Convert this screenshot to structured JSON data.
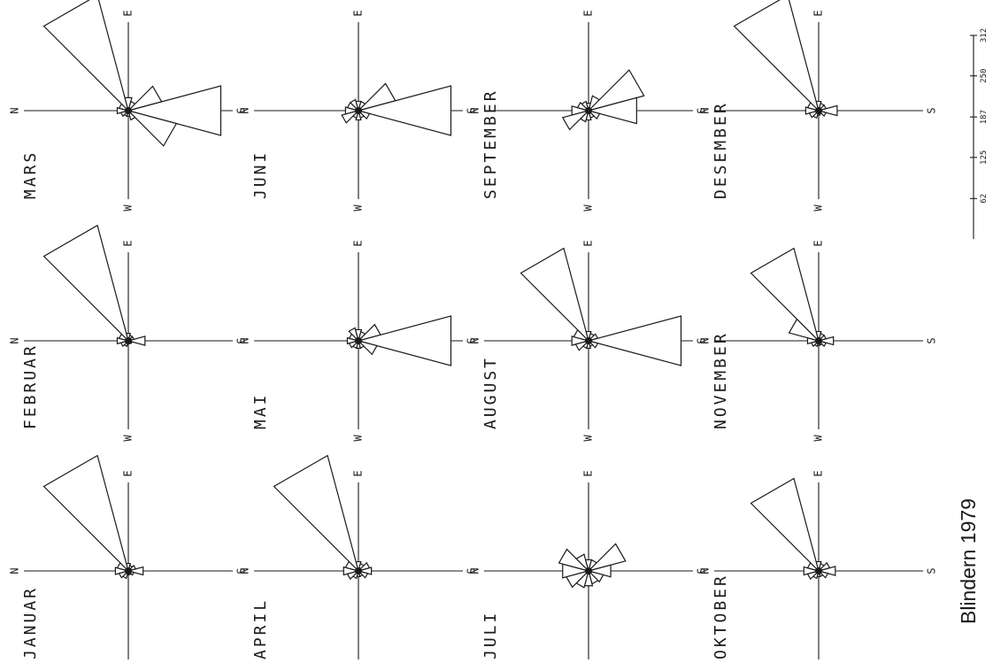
{
  "chart_data": {
    "type": "wind-rose",
    "title": "Blindern 1979",
    "direction_labels": {
      "north": "N",
      "east": "E",
      "south": "S",
      "west": "W"
    },
    "scale": {
      "ticks": [
        "62",
        "125",
        "187",
        "250",
        "312"
      ],
      "max": 312
    },
    "sector_width_deg": 30,
    "directions_deg": [
      0,
      30,
      60,
      90,
      120,
      150,
      180,
      210,
      240,
      270,
      300,
      330
    ],
    "roses": [
      {
        "name": "JANUAR",
        "values": [
          35,
          30,
          312,
          20,
          15,
          20,
          40,
          15,
          10,
          10,
          20,
          25
        ]
      },
      {
        "name": "FEBRUAR",
        "values": [
          30,
          25,
          312,
          20,
          15,
          15,
          45,
          10,
          8,
          8,
          15,
          20
        ]
      },
      {
        "name": "MARS",
        "values": [
          30,
          25,
          312,
          35,
          25,
          90,
          250,
          130,
          25,
          15,
          15,
          20
        ]
      },
      {
        "name": "APRIL",
        "values": [
          40,
          35,
          312,
          25,
          20,
          30,
          35,
          25,
          15,
          15,
          20,
          30
        ]
      },
      {
        "name": "MAI",
        "values": [
          30,
          25,
          35,
          30,
          25,
          60,
          250,
          50,
          20,
          20,
          20,
          25
        ]
      },
      {
        "name": "JUNI",
        "values": [
          35,
          30,
          30,
          25,
          25,
          100,
          250,
          30,
          20,
          25,
          20,
          45
        ]
      },
      {
        "name": "JULI",
        "values": [
          70,
          80,
          45,
          30,
          30,
          100,
          60,
          40,
          35,
          40,
          45,
          60
        ]
      },
      {
        "name": "AUGUST",
        "values": [
          45,
          40,
          250,
          25,
          20,
          25,
          250,
          25,
          15,
          20,
          20,
          35
        ]
      },
      {
        "name": "SEPTEMBER",
        "values": [
          45,
          30,
          25,
          20,
          40,
          150,
          130,
          30,
          20,
          25,
          30,
          70
        ]
      },
      {
        "name": "OKTOBER",
        "values": [
          40,
          30,
          250,
          25,
          20,
          30,
          45,
          25,
          15,
          15,
          20,
          30
        ]
      },
      {
        "name": "NOVEMBER",
        "values": [
          30,
          80,
          250,
          25,
          20,
          20,
          40,
          20,
          12,
          12,
          15,
          20
        ]
      },
      {
        "name": "DESEMBER",
        "values": [
          35,
          30,
          312,
          25,
          20,
          20,
          50,
          20,
          10,
          12,
          20,
          25
        ]
      }
    ]
  }
}
